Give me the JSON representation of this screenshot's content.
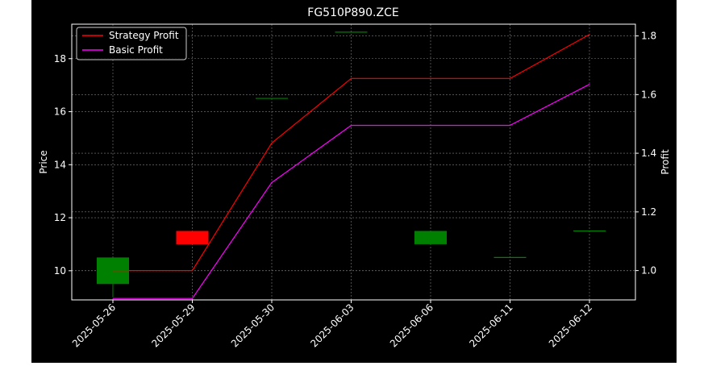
{
  "chart_data": {
    "type": "candlestick",
    "title": "FG510P890.ZCE",
    "xlabel": "",
    "ylabel": "Price",
    "y2label": "Profit",
    "categories": [
      "2025-05-26",
      "2025-05-29",
      "2025-05-30",
      "2025-06-03",
      "2025-06-06",
      "2025-06-11",
      "2025-06-12"
    ],
    "ylim": [
      8.9,
      19.3
    ],
    "y2lim": [
      0.9,
      1.84
    ],
    "yticks": [
      10,
      12,
      14,
      16,
      18
    ],
    "y2ticks": [
      1.0,
      1.2,
      1.4,
      1.6,
      1.8
    ],
    "grid": true,
    "legend_position": "top-left",
    "candles": [
      {
        "date": "2025-05-26",
        "open": 9.5,
        "close": 10.5,
        "high": 10.5,
        "low": 9.0
      },
      {
        "date": "2025-05-29",
        "open": 11.5,
        "close": 11.0,
        "high": 11.5,
        "low": 11.0
      },
      {
        "date": "2025-05-30",
        "open": 16.5,
        "close": 16.5,
        "high": 16.5,
        "low": 16.5
      },
      {
        "date": "2025-06-03",
        "open": 19.0,
        "close": 19.0,
        "high": 19.0,
        "low": 19.0
      },
      {
        "date": "2025-06-06",
        "open": 11.0,
        "close": 11.5,
        "high": 11.5,
        "low": 11.0
      },
      {
        "date": "2025-06-11",
        "open": 10.5,
        "close": 10.5,
        "high": 10.5,
        "low": 10.5
      },
      {
        "date": "2025-06-12",
        "open": 11.5,
        "close": 11.5,
        "high": 11.5,
        "low": 11.5
      }
    ],
    "series": [
      {
        "name": "Strategy Profit",
        "color": "#ff0000",
        "axis": "right",
        "values": [
          1.0,
          1.0,
          1.435,
          1.655,
          1.655,
          1.655,
          1.805
        ]
      },
      {
        "name": "Basic Profit",
        "color": "#ff00ff",
        "axis": "right",
        "values": [
          0.905,
          0.905,
          1.3,
          1.495,
          1.495,
          1.495,
          1.635
        ]
      }
    ],
    "colors": {
      "up": "#008000",
      "down": "#ff0000",
      "background": "#000000",
      "foreground": "#ffffff",
      "grid": "#808080"
    }
  }
}
